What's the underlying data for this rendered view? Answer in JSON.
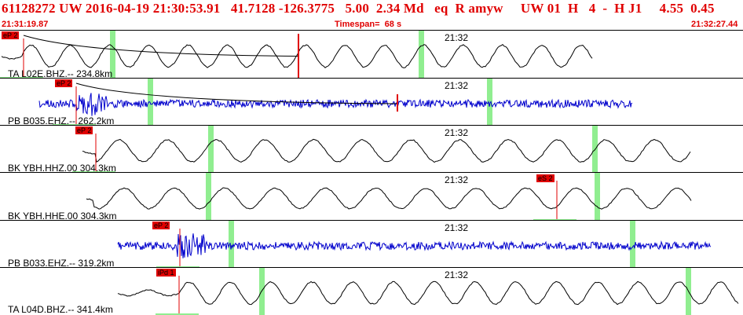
{
  "header": {
    "event_line": "61128272 UW 2016-04-19 21:30:53.91   41.7128 -126.3775   5.00  2.34 Md   eq  R amyw     UW 01  H   4  -  H J1     4.55  0.45",
    "start_time": "21:31:19.87",
    "timespan": "Timespan=  68 s",
    "end_time": "21:32:27.44"
  },
  "colors": {
    "header_red": "#e00000",
    "trace_black": "#000000",
    "trace_blue": "#0000cc",
    "marker_green": "#90ee90",
    "pick_red": "#e00000"
  },
  "panels": [
    {
      "label": "TA L02E.BHZ.-- 234.8km",
      "time_mark": "21:32",
      "pick": "eP 2",
      "trace_color": "trace_black",
      "waveform": "low-frequency"
    },
    {
      "label": "PB B035.EHZ.-- 262.2km",
      "time_mark": "21:32",
      "pick": "eP 2",
      "trace_color": "trace_blue",
      "waveform": "high-frequency"
    },
    {
      "label": "BK YBH.HHZ.00 304.3km",
      "time_mark": "21:32",
      "pick": "eP 2",
      "trace_color": "trace_black",
      "waveform": "low-frequency"
    },
    {
      "label": "BK YBH.HHE.00 304.3km",
      "time_mark": "21:32",
      "pick": "eS 2",
      "trace_color": "trace_black",
      "waveform": "low-frequency"
    },
    {
      "label": "PB B033.EHZ.-- 319.2km",
      "time_mark": "21:32",
      "pick": "eP 2",
      "trace_color": "trace_blue",
      "waveform": "high-frequency"
    },
    {
      "label": "TA L04D.BHZ.-- 341.4km",
      "time_mark": "21:32",
      "pick": "iPd 1",
      "trace_color": "trace_black",
      "waveform": "low-frequency"
    }
  ]
}
